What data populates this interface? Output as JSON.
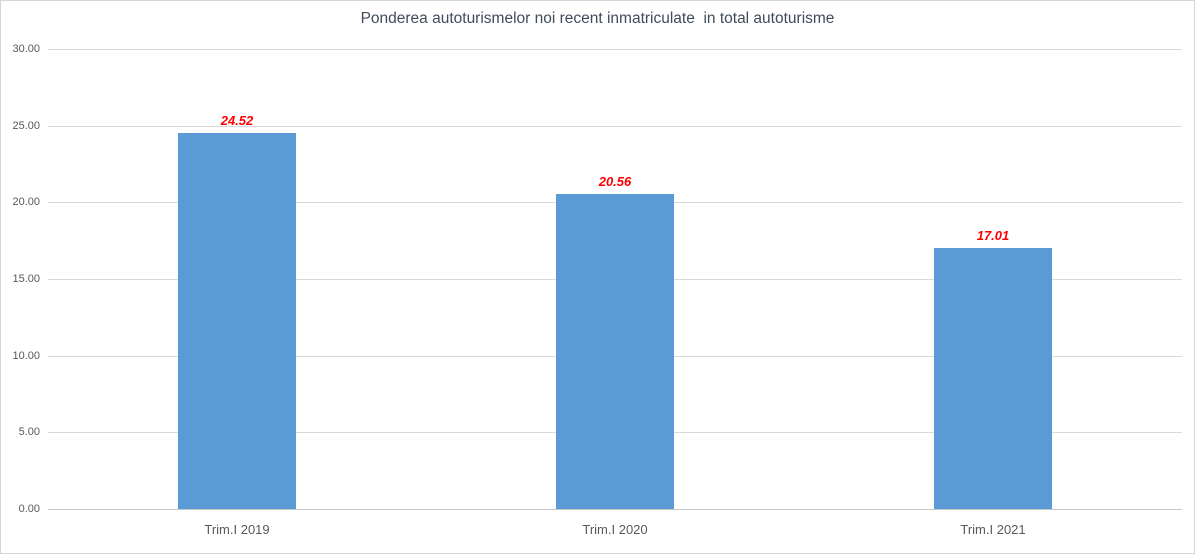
{
  "chart_data": {
    "type": "bar",
    "title": "Ponderea autoturismelor noi recent inmatriculate  in total autoturisme",
    "categories": [
      "Trim.I 2019",
      "Trim.I 2020",
      "Trim.I 2021"
    ],
    "values": [
      24.52,
      20.56,
      17.01
    ],
    "value_labels": [
      "24.52",
      "20.56",
      "17.01"
    ],
    "y_ticks": [
      "30.00",
      "25.00",
      "20.00",
      "15.00",
      "10.00",
      "5.00",
      "0.00"
    ],
    "ylim": [
      0,
      30
    ],
    "grid": true,
    "legend": "none",
    "xlabel": "",
    "ylabel": "",
    "colors": {
      "bar": "#5B9BD5",
      "value_label": "#FF0000",
      "title": "#414C5B",
      "axis_text": "#595959",
      "gridline": "#D9D9D9",
      "axis_line": "#C6C6C6",
      "frame_border": "#D5D5D5"
    }
  }
}
